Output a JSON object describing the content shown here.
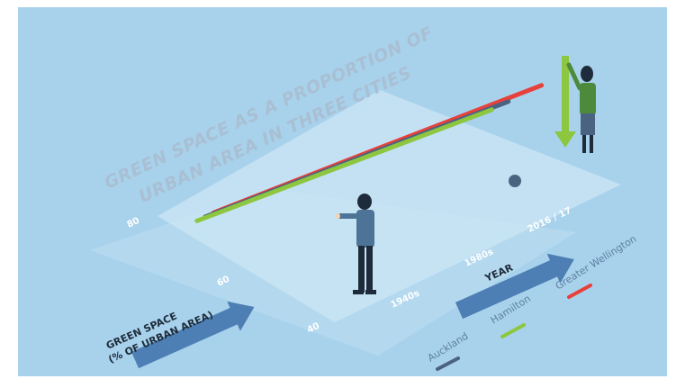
{
  "chart_data": {
    "type": "line",
    "title": "GREEN SPACE AS A PROPORTION OF URBAN AREA IN THREE CITIES",
    "title_lines": [
      "GREEN SPACE AS A PROPORTION OF",
      "URBAN AREA IN THREE CITIES"
    ],
    "ylabel": "GREEN SPACE (% OF URBAN AREA)",
    "ylabel_lines": [
      "GREEN SPACE",
      "(% OF URBAN AREA)"
    ],
    "xlabel": "YEAR",
    "y_ticks": [
      "40",
      "60",
      "80"
    ],
    "x_ticks": [
      "1940s",
      "1980s",
      "2016 / 17"
    ],
    "ylim": [
      40,
      80
    ],
    "x": [
      "1940s",
      "1980s",
      "2016 / 17"
    ],
    "series": [
      {
        "name": "Greater Wellington",
        "color": "#e8403a",
        "values": [
          72,
          80,
          86
        ]
      },
      {
        "name": "Auckland",
        "color": "#4a6380",
        "values": [
          70,
          75,
          78
        ]
      },
      {
        "name": "Hamilton",
        "color": "#8dc63f",
        "values": [
          68,
          71,
          74
        ]
      }
    ],
    "legend_order": [
      "Auckland",
      "Hamilton",
      "Greater Wellington"
    ],
    "legend": "bottom-right",
    "grid": false,
    "colors": {
      "background": "#a8d2ec",
      "plane": "#c9e4f4",
      "arrow": "#4d7fb4",
      "title": "#a9bfd3"
    }
  }
}
